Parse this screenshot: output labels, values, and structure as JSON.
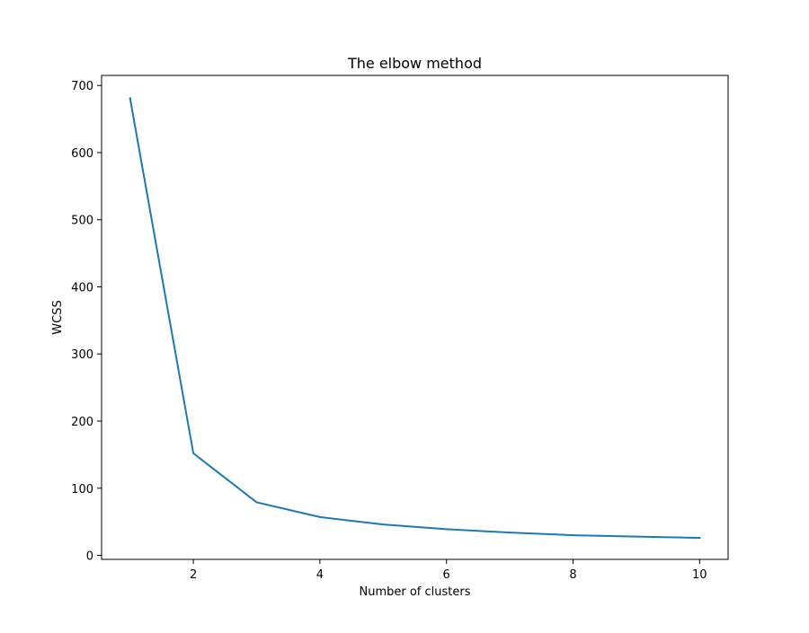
{
  "chart_data": {
    "type": "line",
    "title": "The elbow method",
    "xlabel": "Number of clusters",
    "ylabel": "WCSS",
    "xlim": [
      0.55,
      10.45
    ],
    "ylim": [
      -6,
      715
    ],
    "xticks": [
      2,
      4,
      6,
      8,
      10
    ],
    "yticks": [
      0,
      100,
      200,
      300,
      400,
      500,
      600,
      700
    ],
    "grid": false,
    "series": [
      {
        "color": "#1f77b4",
        "x": [
          1,
          2,
          3,
          4,
          5,
          6,
          7,
          8,
          9,
          10
        ],
        "y": [
          681,
          152,
          79,
          57,
          46,
          39,
          34,
          30,
          28,
          26
        ]
      }
    ]
  }
}
